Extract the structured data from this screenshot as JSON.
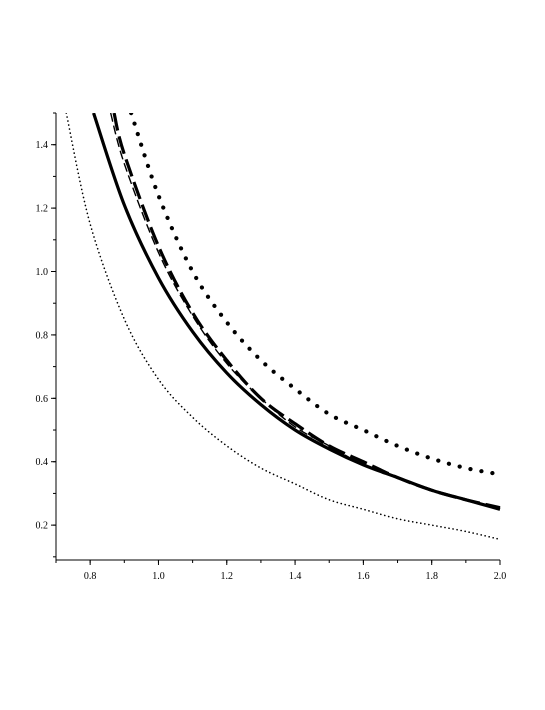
{
  "chart_data": {
    "type": "line",
    "title": "",
    "xlabel": "",
    "ylabel": "",
    "xlim": [
      0.7,
      2.0
    ],
    "ylim": [
      0.1,
      1.5
    ],
    "grid": false,
    "xticks": [
      0.8,
      1.0,
      1.2,
      1.4,
      1.6,
      1.8,
      2.0
    ],
    "xtick_labels": [
      "0.8",
      "1.0",
      "1.2",
      "1.4",
      "1.6",
      "1.8",
      "2.0"
    ],
    "yticks": [
      0.2,
      0.4,
      0.6,
      0.8,
      1.0,
      1.2,
      1.4
    ],
    "ytick_labels": [
      "0.2",
      "0.4",
      "0.6",
      "0.8",
      "1.0",
      "1.2",
      "1.4"
    ],
    "line_color": "#000000",
    "series": [
      {
        "style": "solid-thick",
        "x": [
          0.81,
          0.9,
          1.0,
          1.1,
          1.2,
          1.3,
          1.4,
          1.5,
          1.6,
          1.7,
          1.8,
          1.9,
          2.0
        ],
        "y": [
          1.5,
          1.21,
          0.98,
          0.81,
          0.68,
          0.58,
          0.5,
          0.44,
          0.39,
          0.35,
          0.31,
          0.28,
          0.25
        ]
      },
      {
        "style": "long-dash-thick",
        "x": [
          0.87,
          0.9,
          1.0,
          1.1,
          1.2,
          1.3,
          1.4,
          1.5,
          1.6,
          1.7,
          1.8,
          1.9,
          2.0
        ],
        "y": [
          1.5,
          1.37,
          1.08,
          0.87,
          0.72,
          0.6,
          0.52,
          0.45,
          0.4,
          0.35,
          0.31,
          0.28,
          0.255
        ]
      },
      {
        "style": "dash-thin",
        "x": [
          0.86,
          0.9,
          1.0,
          1.1,
          1.2,
          1.3,
          1.4,
          1.5,
          1.6,
          1.7,
          1.8,
          1.9,
          2.0
        ],
        "y": [
          1.5,
          1.34,
          1.06,
          0.86,
          0.71,
          0.6,
          0.51,
          0.45,
          0.39,
          0.35,
          0.31,
          0.28,
          0.255
        ]
      },
      {
        "style": "dot-thick",
        "x": [
          0.92,
          1.0,
          1.1,
          1.2,
          1.3,
          1.4,
          1.5,
          1.6,
          1.7,
          1.8,
          1.9,
          2.0
        ],
        "y": [
          1.5,
          1.24,
          1.0,
          0.84,
          0.72,
          0.63,
          0.55,
          0.5,
          0.45,
          0.41,
          0.38,
          0.36
        ]
      },
      {
        "style": "dot-thin",
        "x": [
          0.73,
          0.8,
          0.9,
          1.0,
          1.1,
          1.2,
          1.3,
          1.4,
          1.5,
          1.6,
          1.7,
          1.8,
          1.9,
          2.0
        ],
        "y": [
          1.5,
          1.15,
          0.85,
          0.66,
          0.54,
          0.45,
          0.38,
          0.33,
          0.28,
          0.25,
          0.22,
          0.2,
          0.18,
          0.155
        ]
      }
    ]
  }
}
